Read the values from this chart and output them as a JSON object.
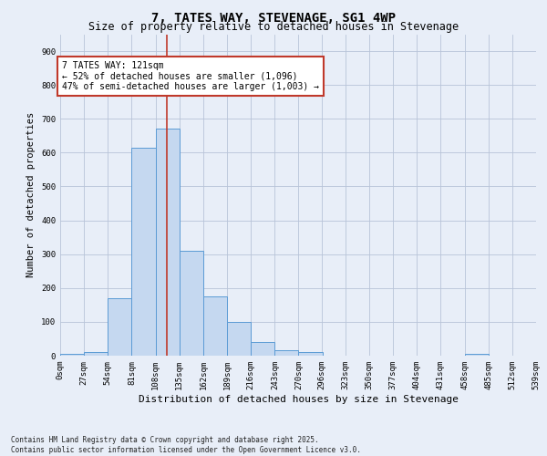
{
  "title_line1": "7, TATES WAY, STEVENAGE, SG1 4WP",
  "title_line2": "Size of property relative to detached houses in Stevenage",
  "xlabel": "Distribution of detached houses by size in Stevenage",
  "ylabel": "Number of detached properties",
  "footnote_line1": "Contains HM Land Registry data © Crown copyright and database right 2025.",
  "footnote_line2": "Contains public sector information licensed under the Open Government Licence v3.0.",
  "annotation_line1": "7 TATES WAY: 121sqm",
  "annotation_line2": "← 52% of detached houses are smaller (1,096)",
  "annotation_line3": "47% of semi-detached houses are larger (1,003) →",
  "property_size_sqm": 121,
  "bar_edges": [
    0,
    27,
    54,
    81,
    108,
    135,
    162,
    189,
    216,
    243,
    270,
    296,
    323,
    350,
    377,
    404,
    431,
    458,
    485,
    512,
    539
  ],
  "bar_heights": [
    5,
    12,
    170,
    615,
    670,
    310,
    175,
    100,
    40,
    15,
    12,
    0,
    0,
    0,
    0,
    0,
    0,
    5,
    0,
    0
  ],
  "bar_color": "#c5d8f0",
  "bar_edge_color": "#5b9bd5",
  "vline_color": "#c0392b",
  "vline_x": 121,
  "ylim": [
    0,
    950
  ],
  "yticks": [
    0,
    100,
    200,
    300,
    400,
    500,
    600,
    700,
    800,
    900
  ],
  "background_color": "#e8eef8",
  "grid_color": "#b8c4d8",
  "annotation_box_color": "#c0392b",
  "annotation_box_fill": "#ffffff",
  "title_fontsize": 10,
  "subtitle_fontsize": 8.5,
  "xlabel_fontsize": 8,
  "ylabel_fontsize": 7.5,
  "tick_fontsize": 6.5,
  "footnote_fontsize": 5.5
}
